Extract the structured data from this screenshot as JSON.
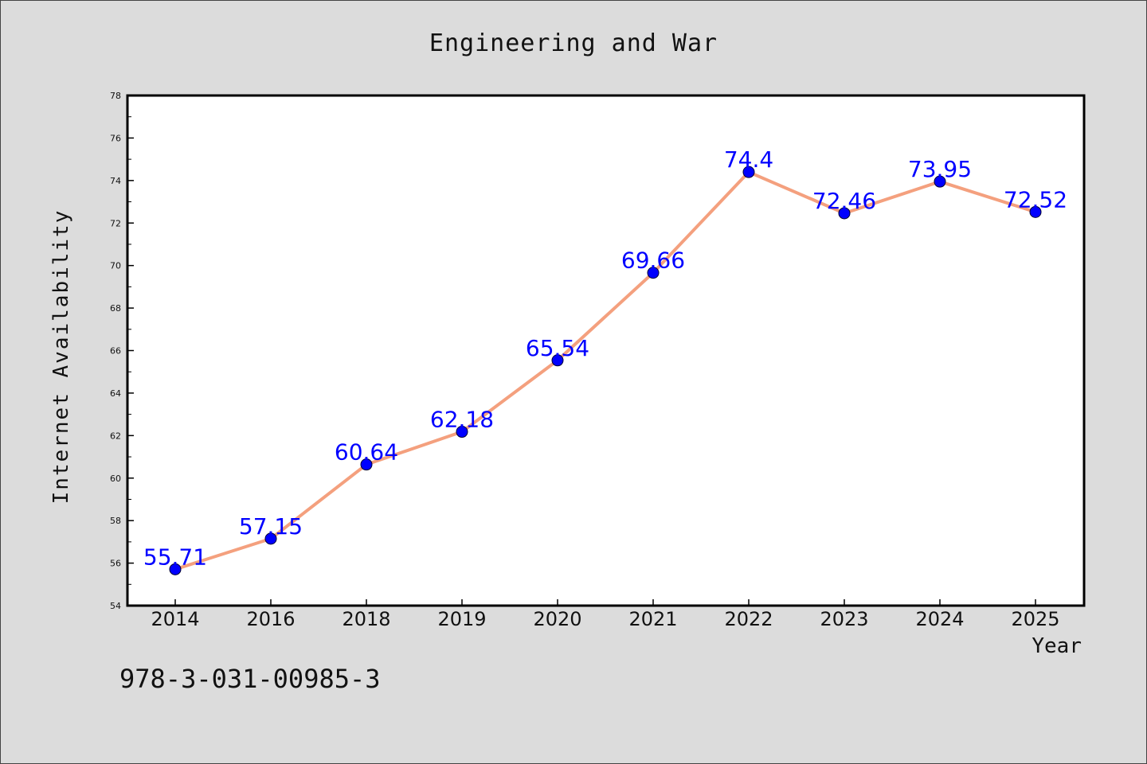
{
  "chart_data": {
    "type": "line",
    "title": "Engineering and War",
    "xlabel": "Year",
    "ylabel": "Internet Availability",
    "categories": [
      "2014",
      "2016",
      "2018",
      "2019",
      "2020",
      "2021",
      "2022",
      "2023",
      "2024",
      "2025"
    ],
    "values": [
      55.71,
      57.15,
      60.64,
      62.18,
      65.54,
      69.66,
      74.4,
      72.46,
      73.95,
      72.52
    ],
    "data_labels": [
      "55.71",
      "57.15",
      "60.64",
      "62.18",
      "65.54",
      "69.66",
      "74.4",
      "72.46",
      "73.95",
      "72.52"
    ],
    "ylim": [
      54,
      78
    ],
    "yticks": [
      54,
      56,
      58,
      60,
      62,
      64,
      66,
      68,
      70,
      72,
      74,
      76,
      78
    ],
    "grid": false,
    "legend": "none",
    "line_color": "#f4a07e",
    "marker_color": "#0000ff",
    "label_color": "#0000ff",
    "background": "#dcdcdc",
    "plot_background": "#ffffff"
  },
  "footer_text": "978-3-031-00985-3"
}
